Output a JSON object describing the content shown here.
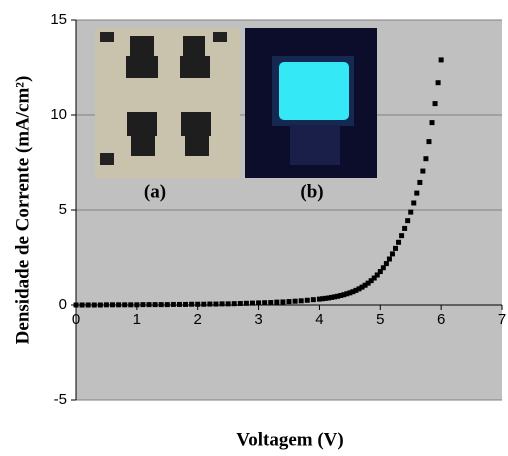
{
  "chart_data": {
    "type": "scatter",
    "xlabel": "Voltagem (V)",
    "ylabel": "Densidade de Corrente (mA/cm²)",
    "annotations": [
      "(a)",
      "(b)"
    ],
    "x": [
      0,
      0.1,
      0.2,
      0.3,
      0.4,
      0.5,
      0.6,
      0.7,
      0.8,
      0.9,
      1.0,
      1.1,
      1.2,
      1.3,
      1.4,
      1.5,
      1.6,
      1.7,
      1.8,
      1.9,
      2.0,
      2.1,
      2.2,
      2.3,
      2.4,
      2.5,
      2.6,
      2.7,
      2.8,
      2.9,
      3.0,
      3.1,
      3.2,
      3.3,
      3.4,
      3.5,
      3.6,
      3.7,
      3.8,
      3.9,
      4.0,
      4.05,
      4.1,
      4.15,
      4.2,
      4.25,
      4.3,
      4.35,
      4.4,
      4.45,
      4.5,
      4.55,
      4.6,
      4.65,
      4.7,
      4.75,
      4.8,
      4.85,
      4.9,
      4.95,
      5.0,
      5.05,
      5.1,
      5.15,
      5.2,
      5.25,
      5.3,
      5.35,
      5.4,
      5.45,
      5.5,
      5.55,
      5.6,
      5.65,
      5.7,
      5.75,
      5.8,
      5.85,
      5.9,
      5.95,
      6.0
    ],
    "series": [
      {
        "color": "#000000",
        "values": [
          0,
          0,
          0,
          0,
          0,
          0.01,
          0.01,
          0.01,
          0.01,
          0.01,
          0.01,
          0.02,
          0.02,
          0.02,
          0.02,
          0.02,
          0.03,
          0.03,
          0.03,
          0.04,
          0.04,
          0.04,
          0.05,
          0.05,
          0.06,
          0.06,
          0.07,
          0.08,
          0.09,
          0.1,
          0.11,
          0.12,
          0.13,
          0.15,
          0.16,
          0.18,
          0.2,
          0.22,
          0.25,
          0.28,
          0.31,
          0.33,
          0.35,
          0.37,
          0.4,
          0.43,
          0.46,
          0.5,
          0.54,
          0.59,
          0.64,
          0.7,
          0.77,
          0.85,
          0.94,
          1.04,
          1.15,
          1.28,
          1.42,
          1.58,
          1.76,
          1.96,
          2.18,
          2.42,
          2.69,
          2.98,
          3.3,
          3.65,
          4.03,
          4.44,
          4.89,
          5.37,
          5.89,
          6.45,
          7.05,
          7.7,
          8.6,
          9.6,
          10.6,
          11.7,
          12.9
        ]
      }
    ],
    "xlim": [
      0,
      7
    ],
    "xticks": [
      0,
      1,
      2,
      3,
      4,
      5,
      6,
      7
    ],
    "ylim": [
      -5,
      15
    ],
    "yticks": [
      -5,
      0,
      5,
      10,
      15
    ],
    "grid": true,
    "background": "#c0c0c0"
  }
}
